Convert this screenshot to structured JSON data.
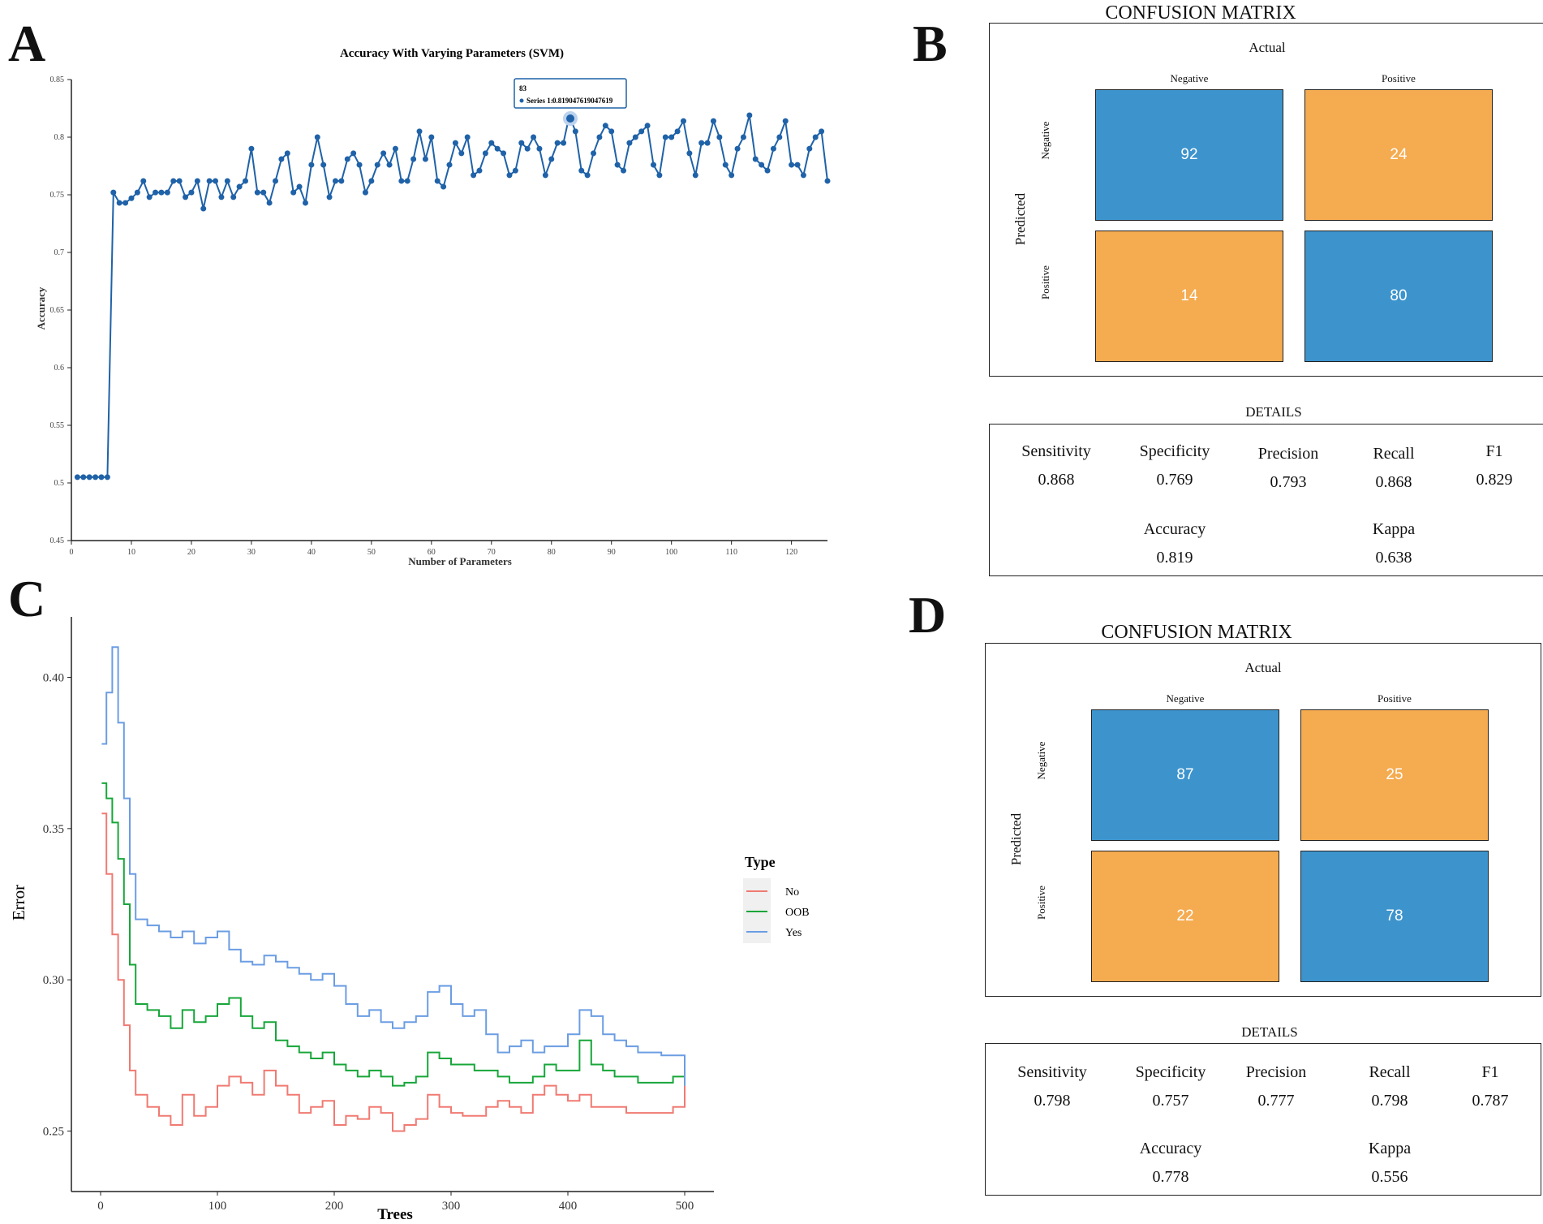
{
  "panels": {
    "A": "A",
    "B": "B",
    "C": "C",
    "D": "D"
  },
  "colors": {
    "svm_line": "#1f62a8",
    "cm_blue": "#3d94cd",
    "cm_orange": "#f5ab50",
    "rf_no": "#f07a72",
    "rf_oob": "#17a63a",
    "rf_yes": "#6b9de3"
  },
  "chart_data": [
    {
      "id": "A",
      "type": "line",
      "title": "Accuracy With Varying Parameters (SVM)",
      "xlabel": "Number of Parameters",
      "ylabel": "Accuracy",
      "xlim": [
        0,
        126
      ],
      "ylim": [
        0.45,
        0.85
      ],
      "xticks": [
        0,
        10,
        20,
        30,
        40,
        50,
        60,
        70,
        80,
        90,
        100,
        110,
        120
      ],
      "yticks": [
        0.45,
        0.5,
        0.55,
        0.6,
        0.65,
        0.7,
        0.75,
        0.8,
        0.85
      ],
      "ytick_labels": [
        "0.45",
        "0.5",
        "0.55",
        "0.6",
        "0.65",
        "0.7",
        "0.75",
        "0.8",
        "0.85"
      ],
      "tooltip": {
        "x": 83,
        "header": "83",
        "series_label": "Series  1:",
        "value": "0.819047619047619",
        "y": 0.819
      },
      "series": [
        {
          "name": "Series 1",
          "x": [
            1,
            2,
            3,
            4,
            5,
            6,
            7,
            8,
            9,
            10,
            11,
            12,
            13,
            14,
            15,
            16,
            17,
            18,
            19,
            20,
            21,
            22,
            23,
            24,
            25,
            26,
            27,
            28,
            29,
            30,
            31,
            32,
            33,
            34,
            35,
            36,
            37,
            38,
            39,
            40,
            41,
            42,
            43,
            44,
            45,
            46,
            47,
            48,
            49,
            50,
            51,
            52,
            53,
            54,
            55,
            56,
            57,
            58,
            59,
            60,
            61,
            62,
            63,
            64,
            65,
            66,
            67,
            68,
            69,
            70,
            71,
            72,
            73,
            74,
            75,
            76,
            77,
            78,
            79,
            80,
            81,
            82,
            83,
            84,
            85,
            86,
            87,
            88,
            89,
            90,
            91,
            92,
            93,
            94,
            95,
            96,
            97,
            98,
            99,
            100,
            101,
            102,
            103,
            104,
            105,
            106,
            107,
            108,
            109,
            110,
            111,
            112,
            113,
            114,
            115,
            116,
            117,
            118,
            119,
            120,
            121,
            122,
            123,
            124,
            125,
            126
          ],
          "values": [
            0.505,
            0.505,
            0.505,
            0.505,
            0.505,
            0.505,
            0.752,
            0.743,
            0.743,
            0.747,
            0.752,
            0.762,
            0.748,
            0.752,
            0.752,
            0.752,
            0.762,
            0.762,
            0.748,
            0.752,
            0.762,
            0.738,
            0.762,
            0.762,
            0.748,
            0.762,
            0.748,
            0.757,
            0.762,
            0.79,
            0.752,
            0.752,
            0.743,
            0.762,
            0.781,
            0.786,
            0.752,
            0.757,
            0.743,
            0.776,
            0.8,
            0.776,
            0.748,
            0.762,
            0.762,
            0.781,
            0.786,
            0.776,
            0.752,
            0.762,
            0.776,
            0.786,
            0.776,
            0.79,
            0.762,
            0.762,
            0.781,
            0.805,
            0.781,
            0.8,
            0.762,
            0.757,
            0.776,
            0.795,
            0.786,
            0.8,
            0.767,
            0.771,
            0.786,
            0.795,
            0.79,
            0.786,
            0.767,
            0.771,
            0.795,
            0.79,
            0.8,
            0.79,
            0.767,
            0.781,
            0.795,
            0.795,
            0.819,
            0.805,
            0.771,
            0.767,
            0.786,
            0.8,
            0.81,
            0.805,
            0.776,
            0.771,
            0.795,
            0.8,
            0.805,
            0.81,
            0.776,
            0.767,
            0.8,
            0.8,
            0.805,
            0.814,
            0.786,
            0.767,
            0.795,
            0.795,
            0.814,
            0.8,
            0.776,
            0.767,
            0.79,
            0.8,
            0.819,
            0.781,
            0.776,
            0.771,
            0.79,
            0.8,
            0.814,
            0.776,
            0.776,
            0.767,
            0.79,
            0.8,
            0.805,
            0.762
          ]
        }
      ]
    },
    {
      "id": "B",
      "type": "table",
      "title": "CONFUSION MATRIX",
      "actual_label": "Actual",
      "predicted_label": "Predicted",
      "col_labels": [
        "Negative",
        "Positive"
      ],
      "row_labels": [
        "Negative",
        "Positive"
      ],
      "matrix": [
        [
          92,
          24
        ],
        [
          14,
          80
        ]
      ],
      "details_title": "DETAILS",
      "metrics": [
        {
          "name": "Sensitivity",
          "value": "0.868"
        },
        {
          "name": "Specificity",
          "value": "0.769"
        },
        {
          "name": "Precision",
          "value": "0.793"
        },
        {
          "name": "Recall",
          "value": "0.868"
        },
        {
          "name": "F1",
          "value": "0.829"
        }
      ],
      "summary": [
        {
          "name": "Accuracy",
          "value": "0.819"
        },
        {
          "name": "Kappa",
          "value": "0.638"
        }
      ]
    },
    {
      "id": "C",
      "type": "line",
      "title": "",
      "xlabel": "Trees",
      "ylabel": "Error",
      "xlim": [
        -25,
        525
      ],
      "ylim": [
        0.23,
        0.42
      ],
      "xticks": [
        0,
        100,
        200,
        300,
        400,
        500
      ],
      "yticks": [
        0.25,
        0.3,
        0.35,
        0.4
      ],
      "ytick_labels": [
        "0.25",
        "0.30",
        "0.35",
        "0.40"
      ],
      "legend_title": "Type",
      "legend_position": "right",
      "series": [
        {
          "name": "No",
          "x": [
            1,
            5,
            10,
            15,
            20,
            25,
            30,
            40,
            50,
            60,
            70,
            80,
            90,
            100,
            110,
            120,
            130,
            140,
            150,
            160,
            170,
            180,
            190,
            200,
            210,
            220,
            230,
            240,
            250,
            260,
            270,
            280,
            290,
            300,
            310,
            320,
            330,
            340,
            350,
            360,
            370,
            380,
            390,
            400,
            410,
            420,
            430,
            440,
            450,
            460,
            470,
            480,
            490,
            500
          ],
          "values": [
            0.355,
            0.335,
            0.315,
            0.3,
            0.285,
            0.27,
            0.262,
            0.258,
            0.255,
            0.252,
            0.262,
            0.255,
            0.258,
            0.265,
            0.268,
            0.266,
            0.262,
            0.27,
            0.265,
            0.262,
            0.256,
            0.258,
            0.26,
            0.252,
            0.255,
            0.254,
            0.258,
            0.256,
            0.25,
            0.252,
            0.254,
            0.262,
            0.258,
            0.256,
            0.255,
            0.255,
            0.258,
            0.26,
            0.258,
            0.256,
            0.262,
            0.265,
            0.262,
            0.26,
            0.262,
            0.258,
            0.258,
            0.258,
            0.256,
            0.256,
            0.256,
            0.256,
            0.258,
            0.265
          ]
        },
        {
          "name": "OOB",
          "x": [
            1,
            5,
            10,
            15,
            20,
            25,
            30,
            40,
            50,
            60,
            70,
            80,
            90,
            100,
            110,
            120,
            130,
            140,
            150,
            160,
            170,
            180,
            190,
            200,
            210,
            220,
            230,
            240,
            250,
            260,
            270,
            280,
            290,
            300,
            310,
            320,
            330,
            340,
            350,
            360,
            370,
            380,
            390,
            400,
            410,
            420,
            430,
            440,
            450,
            460,
            470,
            480,
            490,
            500
          ],
          "values": [
            0.365,
            0.36,
            0.352,
            0.34,
            0.325,
            0.305,
            0.292,
            0.29,
            0.288,
            0.284,
            0.29,
            0.286,
            0.288,
            0.292,
            0.294,
            0.288,
            0.284,
            0.286,
            0.28,
            0.278,
            0.276,
            0.274,
            0.276,
            0.272,
            0.27,
            0.268,
            0.27,
            0.268,
            0.265,
            0.266,
            0.268,
            0.276,
            0.274,
            0.272,
            0.272,
            0.27,
            0.27,
            0.268,
            0.266,
            0.266,
            0.268,
            0.272,
            0.27,
            0.27,
            0.28,
            0.272,
            0.27,
            0.268,
            0.268,
            0.266,
            0.266,
            0.266,
            0.268,
            0.265
          ]
        },
        {
          "name": "Yes",
          "x": [
            1,
            5,
            10,
            15,
            20,
            25,
            30,
            40,
            50,
            60,
            70,
            80,
            90,
            100,
            110,
            120,
            130,
            140,
            150,
            160,
            170,
            180,
            190,
            200,
            210,
            220,
            230,
            240,
            250,
            260,
            270,
            280,
            290,
            300,
            310,
            320,
            330,
            340,
            350,
            360,
            370,
            380,
            390,
            400,
            410,
            420,
            430,
            440,
            450,
            460,
            470,
            480,
            490,
            500
          ],
          "values": [
            0.378,
            0.395,
            0.41,
            0.385,
            0.36,
            0.335,
            0.32,
            0.318,
            0.316,
            0.314,
            0.316,
            0.312,
            0.314,
            0.316,
            0.31,
            0.306,
            0.305,
            0.308,
            0.306,
            0.304,
            0.302,
            0.3,
            0.302,
            0.298,
            0.292,
            0.288,
            0.29,
            0.286,
            0.284,
            0.286,
            0.288,
            0.296,
            0.298,
            0.292,
            0.288,
            0.29,
            0.282,
            0.276,
            0.278,
            0.28,
            0.276,
            0.278,
            0.278,
            0.282,
            0.29,
            0.288,
            0.282,
            0.28,
            0.278,
            0.276,
            0.276,
            0.275,
            0.275,
            0.265
          ]
        }
      ]
    },
    {
      "id": "D",
      "type": "table",
      "title": "CONFUSION MATRIX",
      "actual_label": "Actual",
      "predicted_label": "Predicted",
      "col_labels": [
        "Negative",
        "Positive"
      ],
      "row_labels": [
        "Negative",
        "Positive"
      ],
      "matrix": [
        [
          87,
          25
        ],
        [
          22,
          78
        ]
      ],
      "details_title": "DETAILS",
      "metrics": [
        {
          "name": "Sensitivity",
          "value": "0.798"
        },
        {
          "name": "Specificity",
          "value": "0.757"
        },
        {
          "name": "Precision",
          "value": "0.777"
        },
        {
          "name": "Recall",
          "value": "0.798"
        },
        {
          "name": "F1",
          "value": "0.787"
        }
      ],
      "summary": [
        {
          "name": "Accuracy",
          "value": "0.778"
        },
        {
          "name": "Kappa",
          "value": "0.556"
        }
      ]
    }
  ]
}
